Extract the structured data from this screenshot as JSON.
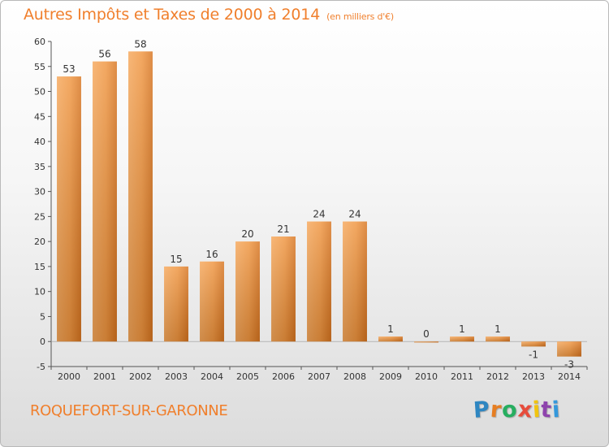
{
  "chart_data": {
    "type": "bar",
    "title": "Autres Impôts et Taxes de 2000 à 2014",
    "unit_label": "(en milliers d'€)",
    "categories": [
      "2000",
      "2001",
      "2002",
      "2003",
      "2004",
      "2005",
      "2006",
      "2007",
      "2008",
      "2009",
      "2010",
      "2011",
      "2012",
      "2013",
      "2014"
    ],
    "values": [
      53,
      56,
      58,
      15,
      16,
      20,
      21,
      24,
      24,
      1,
      0,
      1,
      1,
      -1,
      -3
    ],
    "data_labels": [
      "53",
      "56",
      "58",
      "15",
      "16",
      "20",
      "21",
      "24",
      "24",
      "1",
      "0",
      "1",
      "1",
      "-1",
      "-3"
    ],
    "ylim": [
      -5,
      60
    ],
    "yticks": [
      -5,
      0,
      5,
      10,
      15,
      20,
      25,
      30,
      35,
      40,
      45,
      50,
      55,
      60
    ],
    "xlabel": "",
    "ylabel": "",
    "grid": false,
    "bar_color": "#f0953f"
  },
  "footer": {
    "commune": "ROQUEFORT-SUR-GARONNE",
    "logo_letters": [
      "P",
      "r",
      "o",
      "x",
      "i",
      "t",
      "i"
    ],
    "logo_colors": [
      "#2e86c1",
      "#e67e22",
      "#27ae60",
      "#e74c3c",
      "#f1c40f",
      "#8e44ad",
      "#3498db"
    ]
  },
  "colors": {
    "title": "#f07f2c",
    "axis": "#555555"
  }
}
